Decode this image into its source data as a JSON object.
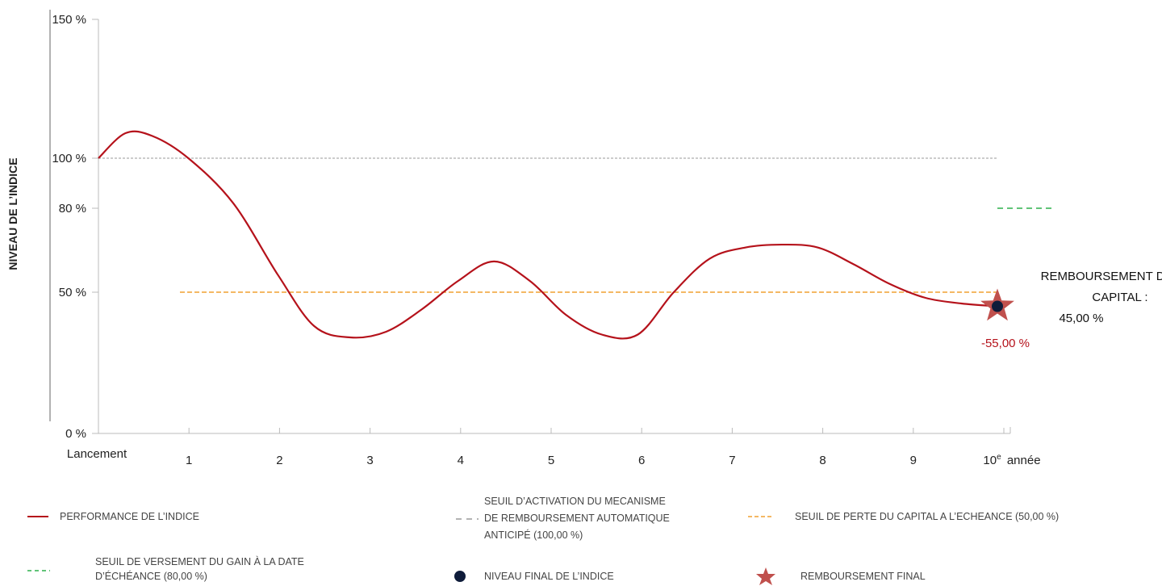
{
  "chart_data": {
    "type": "line",
    "ylabel": "NIVEAU DE L’INDICE",
    "y_ticks": [
      "150 %",
      "100 %",
      "80 %",
      "50 %",
      "0 %"
    ],
    "y_tick_values": [
      150,
      100,
      80,
      50,
      0
    ],
    "x_ticks": [
      "Lancement",
      "1",
      "2",
      "3",
      "4",
      "5",
      "6",
      "7",
      "8",
      "9",
      "10e année"
    ],
    "ylim": [
      0,
      150
    ],
    "xlim": [
      0,
      10
    ],
    "series": [
      {
        "name": "PERFORMANCE DE L’INDICE",
        "color": "#b5121b",
        "x": [
          0,
          0.3,
          0.6,
          1,
          1.5,
          2,
          2.4,
          2.8,
          3.2,
          3.6,
          4,
          4.4,
          4.8,
          5.2,
          5.6,
          6,
          6.4,
          6.8,
          7.2,
          7.6,
          8,
          8.4,
          8.8,
          9.2,
          9.6,
          10
        ],
        "y": [
          100,
          109,
          108,
          100,
          82,
          56,
          38,
          34,
          36,
          44,
          54,
          61,
          54,
          42,
          35,
          35,
          50,
          62,
          66,
          67,
          66,
          60,
          53,
          48,
          46,
          45
        ]
      }
    ],
    "thresholds": [
      {
        "name": "SEUIL D’ACTIVATION DU MECANISME DE REMBOURSEMENT AUTOMATIQUE ANTICIPÉ (100,00  %)",
        "y": 100,
        "color": "#9a9a9a"
      },
      {
        "name": "SEUIL DE PERTE DU CAPITAL A L’ECHEANCE (50,00 %)",
        "y": 50,
        "color": "#f0a030"
      },
      {
        "name": "SEUIL DE VERSEMENT DU GAIN À LA DATE D’ÉCHÉANCE (80,00 %)",
        "y": 80,
        "color": "#2db14b"
      }
    ],
    "final_point": {
      "x": 10,
      "y": 45,
      "label": "-55,00 %"
    },
    "annotation": {
      "line1": "REMBOURSEMENT DU",
      "line2": "CAPITAL :",
      "line3": "45,00 %"
    }
  },
  "legend": {
    "performance": "PERFORMANCE DE L’INDICE",
    "activation_line1": "SEUIL D’ACTIVATION DU MECANISME",
    "activation_line2": "DE REMBOURSEMENT AUTOMATIQUE",
    "activation_line3": "ANTICIPÉ (100,00  %)",
    "perte": "SEUIL DE PERTE DU CAPITAL A L’ECHEANCE (50,00 %)",
    "gain_line1": "SEUIL DE VERSEMENT DU GAIN À LA DATE",
    "gain_line2": "D’ÉCHÉANCE (80,00 %)",
    "niveau_final": "NIVEAU FINAL DE L’INDICE",
    "remboursement_final": "REMBOURSEMENT FINAL"
  },
  "colors": {
    "performance": "#b5121b",
    "activation": "#9a9a9a",
    "perte": "#f0a030",
    "gain": "#2db14b",
    "final_dot": "#0f1c3a",
    "star": "#c0504d"
  }
}
